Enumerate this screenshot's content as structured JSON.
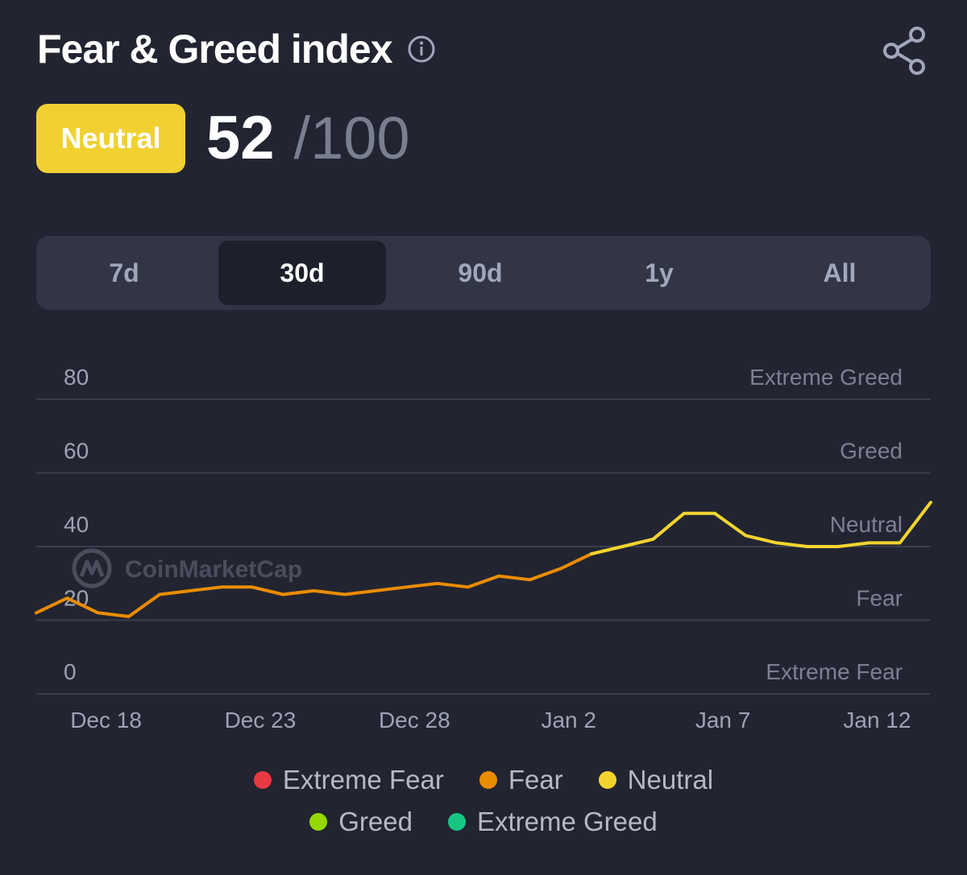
{
  "header": {
    "title": "Fear & Greed index",
    "info_icon": "info-circle-icon",
    "share_icon": "share-icon"
  },
  "score": {
    "badge_label": "Neutral",
    "badge_color": "#f0d131",
    "value": "52",
    "max": "/100"
  },
  "tabs": [
    {
      "label": "7d",
      "active": false
    },
    {
      "label": "30d",
      "active": true
    },
    {
      "label": "90d",
      "active": false
    },
    {
      "label": "1y",
      "active": false
    },
    {
      "label": "All",
      "active": false
    }
  ],
  "watermark": "CoinMarketCap",
  "chart_data": {
    "type": "line",
    "title": "",
    "xlabel": "",
    "ylabel": "",
    "ylim": [
      0,
      100
    ],
    "y_ticks": [
      80,
      60,
      40,
      20,
      0
    ],
    "y_band_labels": [
      "Extreme Greed",
      "Greed",
      "Neutral",
      "Fear",
      "Extreme Fear"
    ],
    "x_tick_labels": [
      {
        "label": "Dec 18",
        "day": 2
      },
      {
        "label": "Dec 23",
        "day": 7
      },
      {
        "label": "Dec 28",
        "day": 12
      },
      {
        "label": "Jan 2",
        "day": 17
      },
      {
        "label": "Jan 7",
        "day": 22
      },
      {
        "label": "Jan 12",
        "day": 27
      }
    ],
    "grid": true,
    "colors": {
      "fear": "#ea8c00",
      "neutral": "#f3d42f"
    },
    "series": [
      {
        "values": [
          22,
          26,
          22,
          21,
          27,
          28,
          29,
          29,
          27,
          28,
          27,
          28,
          29,
          30,
          29,
          32,
          31,
          34,
          38,
          40,
          42,
          49,
          49,
          43,
          41,
          40,
          40,
          41,
          41,
          52
        ]
      }
    ]
  },
  "legend": [
    {
      "label": "Extreme Fear",
      "color": "#ea3943"
    },
    {
      "label": "Fear",
      "color": "#ea8c00"
    },
    {
      "label": "Neutral",
      "color": "#f3d42f"
    },
    {
      "label": "Greed",
      "color": "#93d900"
    },
    {
      "label": "Extreme Greed",
      "color": "#16c784"
    }
  ]
}
